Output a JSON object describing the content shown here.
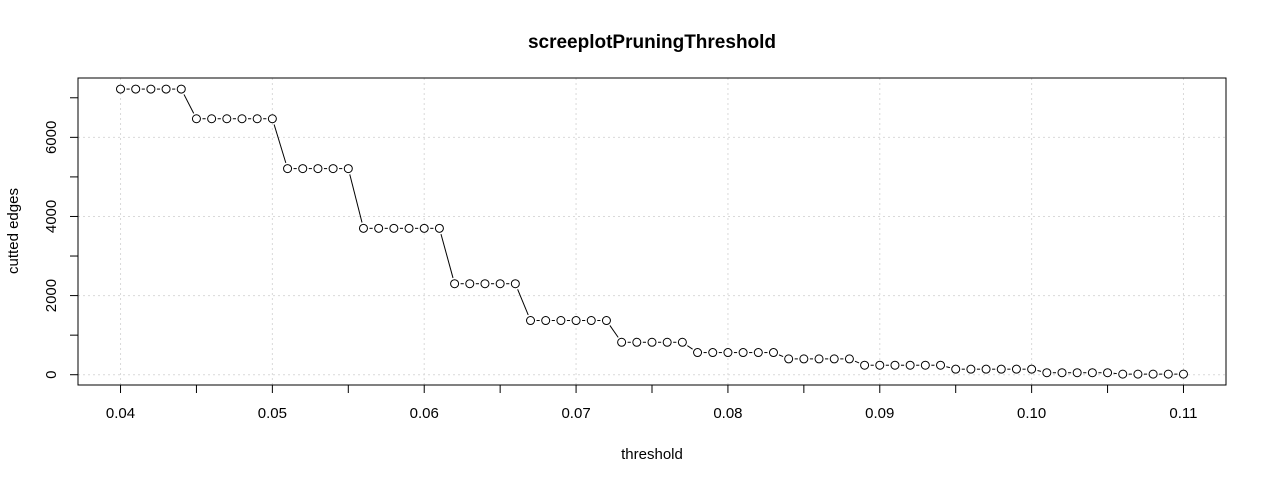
{
  "chart_data": {
    "type": "scatter",
    "title": "screeplotPruningThreshold",
    "xlabel": "threshold",
    "ylabel": "cutted edges",
    "xlim": [
      0.0372,
      0.1128
    ],
    "ylim": [
      -260,
      7500
    ],
    "grid": true,
    "line_style": "broken lines between points",
    "x_ticks": [
      0.04,
      0.05,
      0.06,
      0.07,
      0.08,
      0.09,
      0.1,
      0.11
    ],
    "x_tick_labels": [
      "0.04",
      "0.05",
      "0.06",
      "0.07",
      "0.08",
      "0.09",
      "0.10",
      "0.11"
    ],
    "x_minor_ticks": [
      0.045,
      0.055,
      0.065,
      0.075,
      0.085,
      0.095,
      0.105
    ],
    "y_ticks": [
      0,
      2000,
      4000,
      6000
    ],
    "y_tick_labels": [
      "0",
      "2000",
      "4000",
      "6000"
    ],
    "y_minor_ticks": [
      1000,
      3000,
      5000,
      7000
    ],
    "x": [
      0.04,
      0.041,
      0.042,
      0.043,
      0.044,
      0.045,
      0.046,
      0.047,
      0.048,
      0.049,
      0.05,
      0.051,
      0.052,
      0.053,
      0.054,
      0.055,
      0.056,
      0.057,
      0.058,
      0.059,
      0.06,
      0.061,
      0.062,
      0.063,
      0.064,
      0.065,
      0.066,
      0.067,
      0.068,
      0.069,
      0.07,
      0.071,
      0.072,
      0.073,
      0.074,
      0.075,
      0.076,
      0.077,
      0.078,
      0.079,
      0.08,
      0.081,
      0.082,
      0.083,
      0.084,
      0.085,
      0.086,
      0.087,
      0.088,
      0.089,
      0.09,
      0.091,
      0.092,
      0.093,
      0.094,
      0.095,
      0.096,
      0.097,
      0.098,
      0.099,
      0.1,
      0.101,
      0.102,
      0.103,
      0.104,
      0.105,
      0.106,
      0.107,
      0.108,
      0.109,
      0.11
    ],
    "y": [
      7220,
      7220,
      7220,
      7220,
      7220,
      6470,
      6470,
      6470,
      6470,
      6470,
      6470,
      5210,
      5210,
      5210,
      5210,
      5210,
      3700,
      3700,
      3700,
      3700,
      3700,
      3700,
      2300,
      2300,
      2300,
      2300,
      2300,
      1370,
      1370,
      1370,
      1370,
      1370,
      1370,
      820,
      820,
      820,
      820,
      820,
      560,
      560,
      560,
      560,
      560,
      560,
      400,
      400,
      400,
      400,
      400,
      240,
      240,
      240,
      240,
      240,
      240,
      140,
      140,
      140,
      140,
      140,
      140,
      50,
      50,
      50,
      50,
      50,
      15,
      15,
      15,
      15,
      15
    ]
  }
}
